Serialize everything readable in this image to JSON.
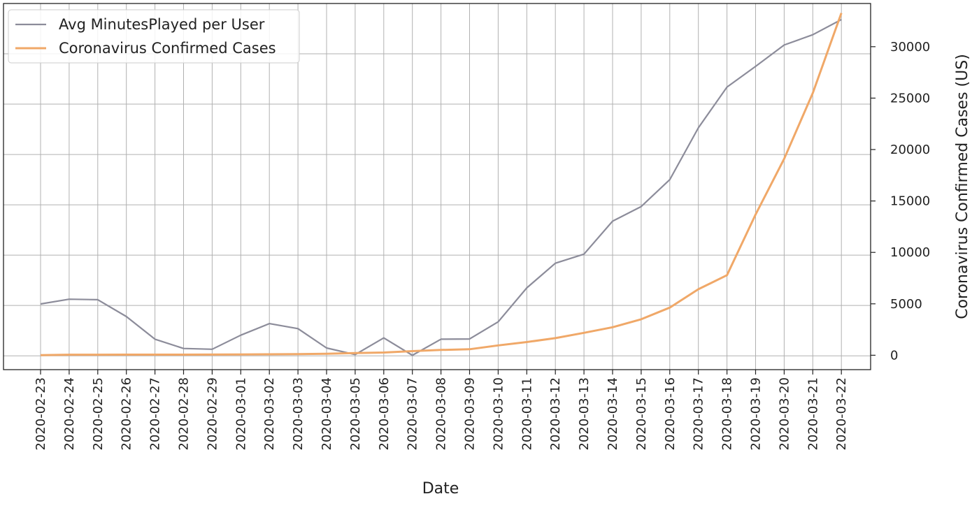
{
  "chart_data": {
    "type": "line",
    "title": "",
    "xlabel": "Date",
    "ylabel_left": "",
    "ylabel_right": "Coronavirus Confirmed Cases (US)",
    "x": [
      "2020-02-23",
      "2020-02-24",
      "2020-02-25",
      "2020-02-26",
      "2020-02-27",
      "2020-02-28",
      "2020-02-29",
      "2020-03-01",
      "2020-03-02",
      "2020-03-03",
      "2020-03-04",
      "2020-03-05",
      "2020-03-06",
      "2020-03-07",
      "2020-03-08",
      "2020-03-09",
      "2020-03-10",
      "2020-03-11",
      "2020-03-12",
      "2020-03-13",
      "2020-03-14",
      "2020-03-15",
      "2020-03-16",
      "2020-03-17",
      "2020-03-18",
      "2020-03-19",
      "2020-03-20",
      "2020-03-21",
      "2020-03-22"
    ],
    "grid": true,
    "legend_position": "top-left",
    "series": [
      {
        "name": "Avg MinutesPlayed per User",
        "axis": "left",
        "color": "#8c8c9a",
        "values": [
          0.206,
          0.225,
          0.223,
          0.156,
          0.066,
          0.029,
          0.026,
          0.082,
          0.128,
          0.108,
          0.031,
          0.005,
          0.071,
          0.002,
          0.066,
          0.067,
          0.135,
          0.27,
          0.368,
          0.404,
          0.535,
          0.593,
          0.7,
          0.906,
          1.068,
          1.15,
          1.235,
          1.276,
          1.336
        ]
      },
      {
        "name": "Coronavirus Confirmed Cases",
        "axis": "right",
        "color": "#f0a868",
        "values": [
          15,
          51,
          57,
          59,
          60,
          62,
          68,
          74,
          98,
          118,
          149,
          217,
          262,
          402,
          518,
          583,
          959,
          1281,
          1663,
          2179,
          2726,
          3499,
          4632,
          6421,
          7786,
          13680,
          19101,
          25493,
          33276
        ]
      }
    ],
    "right_axis": {
      "ylim": [
        -1400,
        34200
      ],
      "ticks": [
        0,
        5000,
        10000,
        15000,
        20000,
        25000,
        30000
      ],
      "tick_labels": [
        "0",
        "5000",
        "10000",
        "15000",
        "20000",
        "25000",
        "30000"
      ]
    },
    "left_axis": {
      "ylim": [
        -0.055,
        1.4
      ],
      "gridlines": [
        0.0,
        0.2,
        0.4,
        0.6,
        0.8,
        1.0,
        1.2,
        1.4
      ],
      "tick_labels_visible": false
    }
  }
}
